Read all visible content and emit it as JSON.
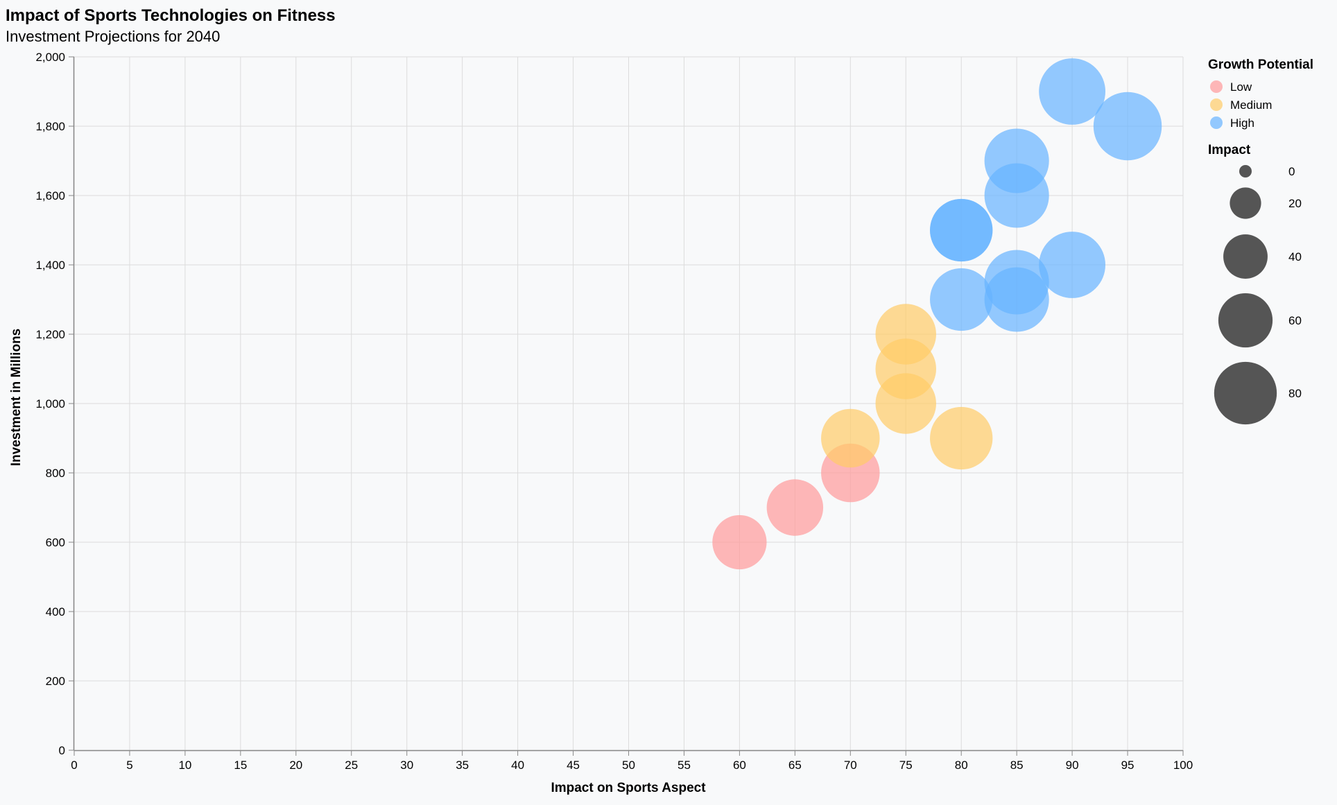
{
  "chart_data": {
    "type": "scatter",
    "title": "Impact of Sports Technologies on Fitness",
    "subtitle": "Investment Projections for 2040",
    "xlabel": "Impact on Sports Aspect",
    "ylabel": "Investment in Millions",
    "xlim": [
      0,
      100
    ],
    "ylim": [
      0,
      2000
    ],
    "x_ticks": [
      0,
      5,
      10,
      15,
      20,
      25,
      30,
      35,
      40,
      45,
      50,
      55,
      60,
      65,
      70,
      75,
      80,
      85,
      90,
      95,
      100
    ],
    "y_ticks": [
      0,
      200,
      400,
      600,
      800,
      1000,
      1200,
      1400,
      1600,
      1800,
      2000
    ],
    "x_tick_labels": [
      "0",
      "5",
      "10",
      "15",
      "20",
      "25",
      "30",
      "35",
      "40",
      "45",
      "50",
      "55",
      "60",
      "65",
      "70",
      "75",
      "80",
      "85",
      "90",
      "95",
      "100"
    ],
    "y_tick_labels": [
      "0",
      "200",
      "400",
      "600",
      "800",
      "1,000",
      "1,200",
      "1,400",
      "1,600",
      "1,800",
      "2,000"
    ],
    "grid": true,
    "color_legend": {
      "title": "Growth Potential",
      "placement": "top-right",
      "entries": [
        {
          "label": "Low",
          "color": "#ff9a9a"
        },
        {
          "label": "Medium",
          "color": "#ffcc66"
        },
        {
          "label": "High",
          "color": "#66b3ff"
        }
      ]
    },
    "size_legend": {
      "title": "Impact",
      "values": [
        0,
        20,
        40,
        60,
        80
      ],
      "labels": [
        "0",
        "20",
        "40",
        "60",
        "80"
      ]
    },
    "points": [
      {
        "x": 60,
        "y": 600,
        "size": 60,
        "growth": "Low"
      },
      {
        "x": 65,
        "y": 700,
        "size": 65,
        "growth": "Low"
      },
      {
        "x": 70,
        "y": 800,
        "size": 70,
        "growth": "Low"
      },
      {
        "x": 70,
        "y": 900,
        "size": 70,
        "growth": "Medium"
      },
      {
        "x": 75,
        "y": 1000,
        "size": 75,
        "growth": "Medium"
      },
      {
        "x": 75,
        "y": 1100,
        "size": 75,
        "growth": "Medium"
      },
      {
        "x": 75,
        "y": 1200,
        "size": 75,
        "growth": "Medium"
      },
      {
        "x": 80,
        "y": 900,
        "size": 80,
        "growth": "Medium"
      },
      {
        "x": 80,
        "y": 1300,
        "size": 80,
        "growth": "High"
      },
      {
        "x": 80,
        "y": 1500,
        "size": 80,
        "growth": "High"
      },
      {
        "x": 80,
        "y": 1500,
        "size": 80,
        "growth": "High"
      },
      {
        "x": 85,
        "y": 1300,
        "size": 85,
        "growth": "High"
      },
      {
        "x": 85,
        "y": 1350,
        "size": 85,
        "growth": "High"
      },
      {
        "x": 85,
        "y": 1600,
        "size": 85,
        "growth": "High"
      },
      {
        "x": 85,
        "y": 1700,
        "size": 85,
        "growth": "High"
      },
      {
        "x": 90,
        "y": 1400,
        "size": 90,
        "growth": "High"
      },
      {
        "x": 90,
        "y": 1900,
        "size": 90,
        "growth": "High"
      },
      {
        "x": 95,
        "y": 1800,
        "size": 95,
        "growth": "High"
      }
    ]
  }
}
